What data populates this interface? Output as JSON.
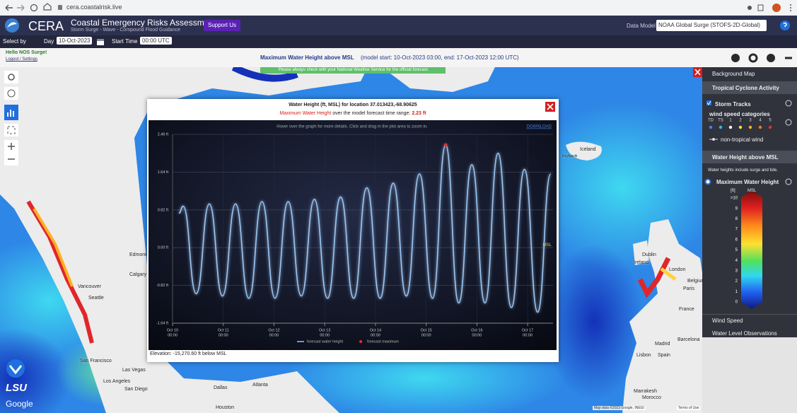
{
  "browser": {
    "url": "cera.coastalrisk.live"
  },
  "header": {
    "logo_text": "CERA",
    "title": "Coastal Emergency Risks Assessment",
    "tagline": "Storm Surge - Wave - Compound Flood Guidance",
    "support_button": "Support Us",
    "data_model_label": "Data Model",
    "data_model": "NOAA Global Surge (STOFS-2D-Global)"
  },
  "toolbar": {
    "select_by": "Select by",
    "day_label": "Day",
    "day": "10-Oct-2023",
    "start_time_label": "Start Time",
    "start_time": "00:00 UTC"
  },
  "info_bar": {
    "greeting": "Hello NOS Surge!",
    "links": "Logout / Settings",
    "product": "Maximum Water Height above MSL",
    "model_range": "(model start: 10-Oct-2023 03:00, end: 17-Oct-2023 12:00 UTC)"
  },
  "notice": "Please always check with your National Weather Service for the official forecast.",
  "map_labels": [
    "Iceland",
    "Reykjavik",
    "Edmonton",
    "Calgary",
    "Vancouver",
    "Seattle",
    "San Francisco",
    "Las Vegas",
    "Los Angeles",
    "San Diego",
    "Dallas",
    "Atlanta",
    "Houston",
    "Dublin",
    "Ireland",
    "London",
    "Belgium",
    "Paris",
    "France",
    "Madrid",
    "Spain",
    "Lisbon",
    "Barcelona",
    "Marrakesh",
    "Morocco"
  ],
  "map_footer": {
    "logo": "LSU",
    "provider": "Google",
    "attribution": "Map data ©2023 Google, INEGI",
    "terms": "Terms of Use"
  },
  "sidebar": {
    "background_map": "Background Map",
    "tropical_header": "Tropical Cyclone Activity",
    "storm_tracks": "Storm Tracks",
    "wind_categories_title": "wind speed categories",
    "wind_categories": [
      {
        "label": "TD",
        "color": "#4a7dff"
      },
      {
        "label": "TS",
        "color": "#39b3ff"
      },
      {
        "label": "1",
        "color": "#ffffff"
      },
      {
        "label": "2",
        "color": "#ffe14a"
      },
      {
        "label": "3",
        "color": "#ffb020"
      },
      {
        "label": "4",
        "color": "#ff7a1a"
      },
      {
        "label": "5",
        "color": "#e83030"
      }
    ],
    "non_tropical": "non-tropical wind",
    "water_header": "Water Height above MSL",
    "water_note": "Water heights include surge and tide.",
    "max_water": "Maximum Water Height",
    "scale_unit": "[ft]",
    "scale_ref": "MSL",
    "scale_labels": [
      ">10",
      "9",
      "8",
      "7",
      "6",
      "5",
      "4",
      "3",
      "2",
      "1",
      "0"
    ],
    "wind_speed": "Wind Speed",
    "water_obs": "Water Level Observations"
  },
  "popup": {
    "title": "Water Height (ft, MSL) for location 37.013423,-68.90625",
    "max_label": "Maximum Water Height",
    "max_text": "over the model forecast time range:",
    "max_value": "2.23 ft",
    "hint": "Hover over the graph for more details. Click and drag in the plot area to zoom in.",
    "download": "DOWNLOAD",
    "elevation": "Elevation: -15,270.60 ft below MSL"
  },
  "chart_data": {
    "type": "line",
    "x": [
      3,
      5,
      11.2,
      17.4,
      23.6,
      29.8,
      36.1,
      42.3,
      48.5,
      54.7,
      60.9,
      67.1,
      73.3,
      79.5,
      85.7,
      91.9,
      98.2,
      104.4,
      110.6,
      116.8,
      123.0,
      129.2,
      135.4,
      141.6,
      147.8,
      154.0,
      160.3,
      166.5,
      172.7,
      178.9
    ],
    "series": [
      {
        "name": "forecast water height",
        "color": "#9cc6f2",
        "values": [
          0.75,
          0.9,
          -1.0,
          0.95,
          -1.05,
          0.95,
          -1.1,
          1.0,
          -1.1,
          1.0,
          -1.05,
          1.05,
          -1.1,
          1.1,
          -1.1,
          1.3,
          -1.1,
          1.4,
          -1.05,
          1.6,
          -1.1,
          2.23,
          -1.2,
          1.8,
          -1.2,
          2.05,
          -1.3,
          1.7,
          -1.4,
          1.6
        ]
      },
      {
        "name": "forecast maximum",
        "color": "#e53030",
        "type": "scatter",
        "x": [
          129.2
        ],
        "values": [
          2.23
        ]
      }
    ],
    "xlim": [
      0,
      180
    ],
    "xticks": [
      {
        "value": 0,
        "label": "Oct 10",
        "sublabel": "00:00"
      },
      {
        "value": 24,
        "label": "Oct 11",
        "sublabel": "00:00"
      },
      {
        "value": 48,
        "label": "Oct 12",
        "sublabel": "00:00"
      },
      {
        "value": 72,
        "label": "Oct 13",
        "sublabel": "00:00"
      },
      {
        "value": 96,
        "label": "Oct 14",
        "sublabel": "00:00"
      },
      {
        "value": 120,
        "label": "Oct 15",
        "sublabel": "00:00"
      },
      {
        "value": 144,
        "label": "Oct 16",
        "sublabel": "00:00"
      },
      {
        "value": 168,
        "label": "Oct 17",
        "sublabel": "00:00"
      }
    ],
    "ylim": [
      -1.64,
      2.46
    ],
    "yticks": [
      {
        "value": 2.46,
        "label": "2.46 ft"
      },
      {
        "value": 1.64,
        "label": "1.64 ft"
      },
      {
        "value": 0.82,
        "label": "0.82 ft"
      },
      {
        "value": 0,
        "label": "0.00 ft"
      },
      {
        "value": -0.82,
        "label": "-0.82 ft"
      },
      {
        "value": -1.64,
        "label": "-1.64 ft"
      }
    ],
    "annotations": [
      {
        "label": "MSL",
        "value": 0
      }
    ],
    "grid": true
  }
}
